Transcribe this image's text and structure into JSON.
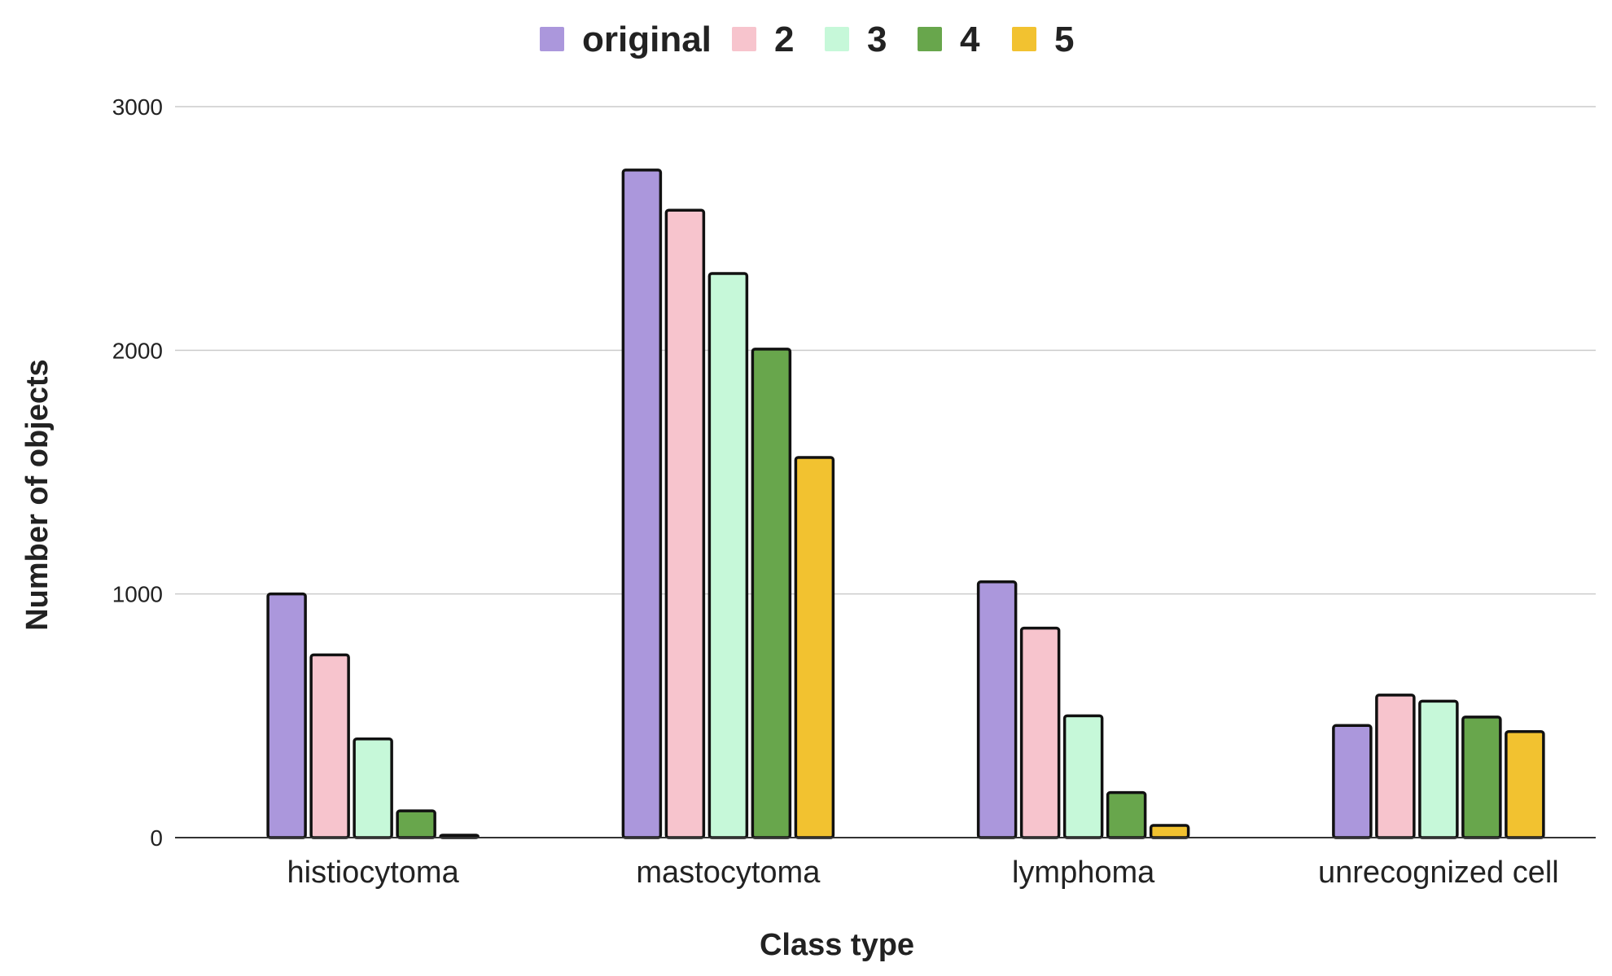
{
  "chart_data": {
    "type": "bar",
    "categories": [
      "histiocytoma",
      "mastocytoma",
      "lymphoma",
      "unrecognized cell"
    ],
    "series": [
      {
        "name": "original",
        "color": "#ab97dc",
        "values": [
          1000,
          2740,
          1050,
          460
        ]
      },
      {
        "name": "2",
        "color": "#f7c4cd",
        "values": [
          750,
          2575,
          860,
          585
        ]
      },
      {
        "name": "3",
        "color": "#c6f8d9",
        "values": [
          405,
          2315,
          500,
          560
        ]
      },
      {
        "name": "4",
        "color": "#68a64c",
        "values": [
          110,
          2005,
          185,
          495
        ]
      },
      {
        "name": "5",
        "color": "#f2c230",
        "values": [
          10,
          1560,
          50,
          435
        ]
      }
    ],
    "yticks": [
      "0",
      "1000",
      "2000",
      "3000"
    ],
    "ylim": [
      0,
      3000
    ],
    "xlabel": "Class type",
    "ylabel": "Number of objects",
    "legend_position": "top",
    "grid": true
  }
}
